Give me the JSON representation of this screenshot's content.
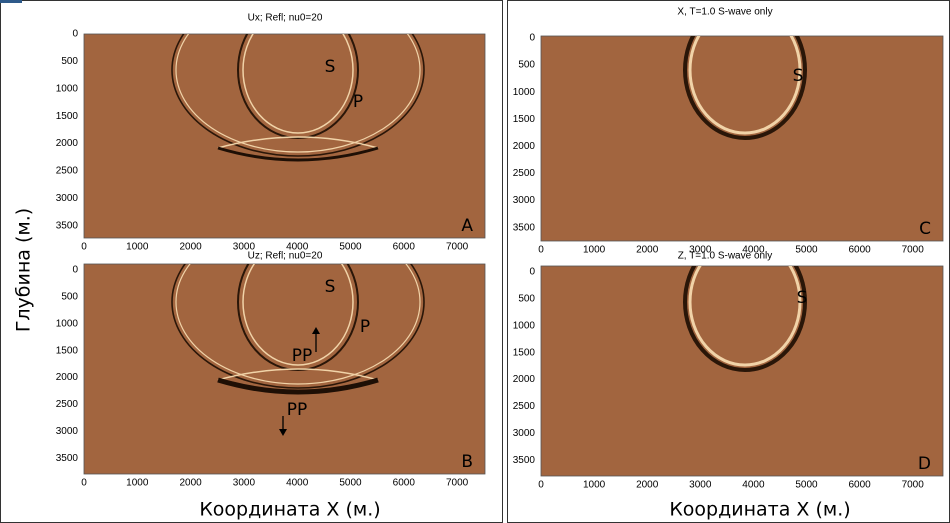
{
  "axes": {
    "xticks": [
      0,
      1000,
      2000,
      3000,
      4000,
      5000,
      6000,
      7000
    ],
    "yticks": [
      0,
      500,
      1000,
      1500,
      2000,
      2500,
      3000,
      3500
    ],
    "xlabel": "Координата X (м.)",
    "ylabel": "Глубина (м.)"
  },
  "panels": [
    {
      "title": "Ux; Refl; nu0=20",
      "letter": "A",
      "wave_labels": [
        "S",
        "P"
      ]
    },
    {
      "title": "Uz; Refl; nu0=20",
      "letter": "B",
      "wave_labels": [
        "S",
        "P",
        "PP",
        "PP"
      ]
    },
    {
      "title": "X, T=1.0 S-wave only",
      "letter": "C",
      "wave_labels": [
        "S"
      ]
    },
    {
      "title": "Z, T=1.0 S-wave only",
      "letter": "D",
      "wave_labels": [
        "S"
      ]
    }
  ]
}
